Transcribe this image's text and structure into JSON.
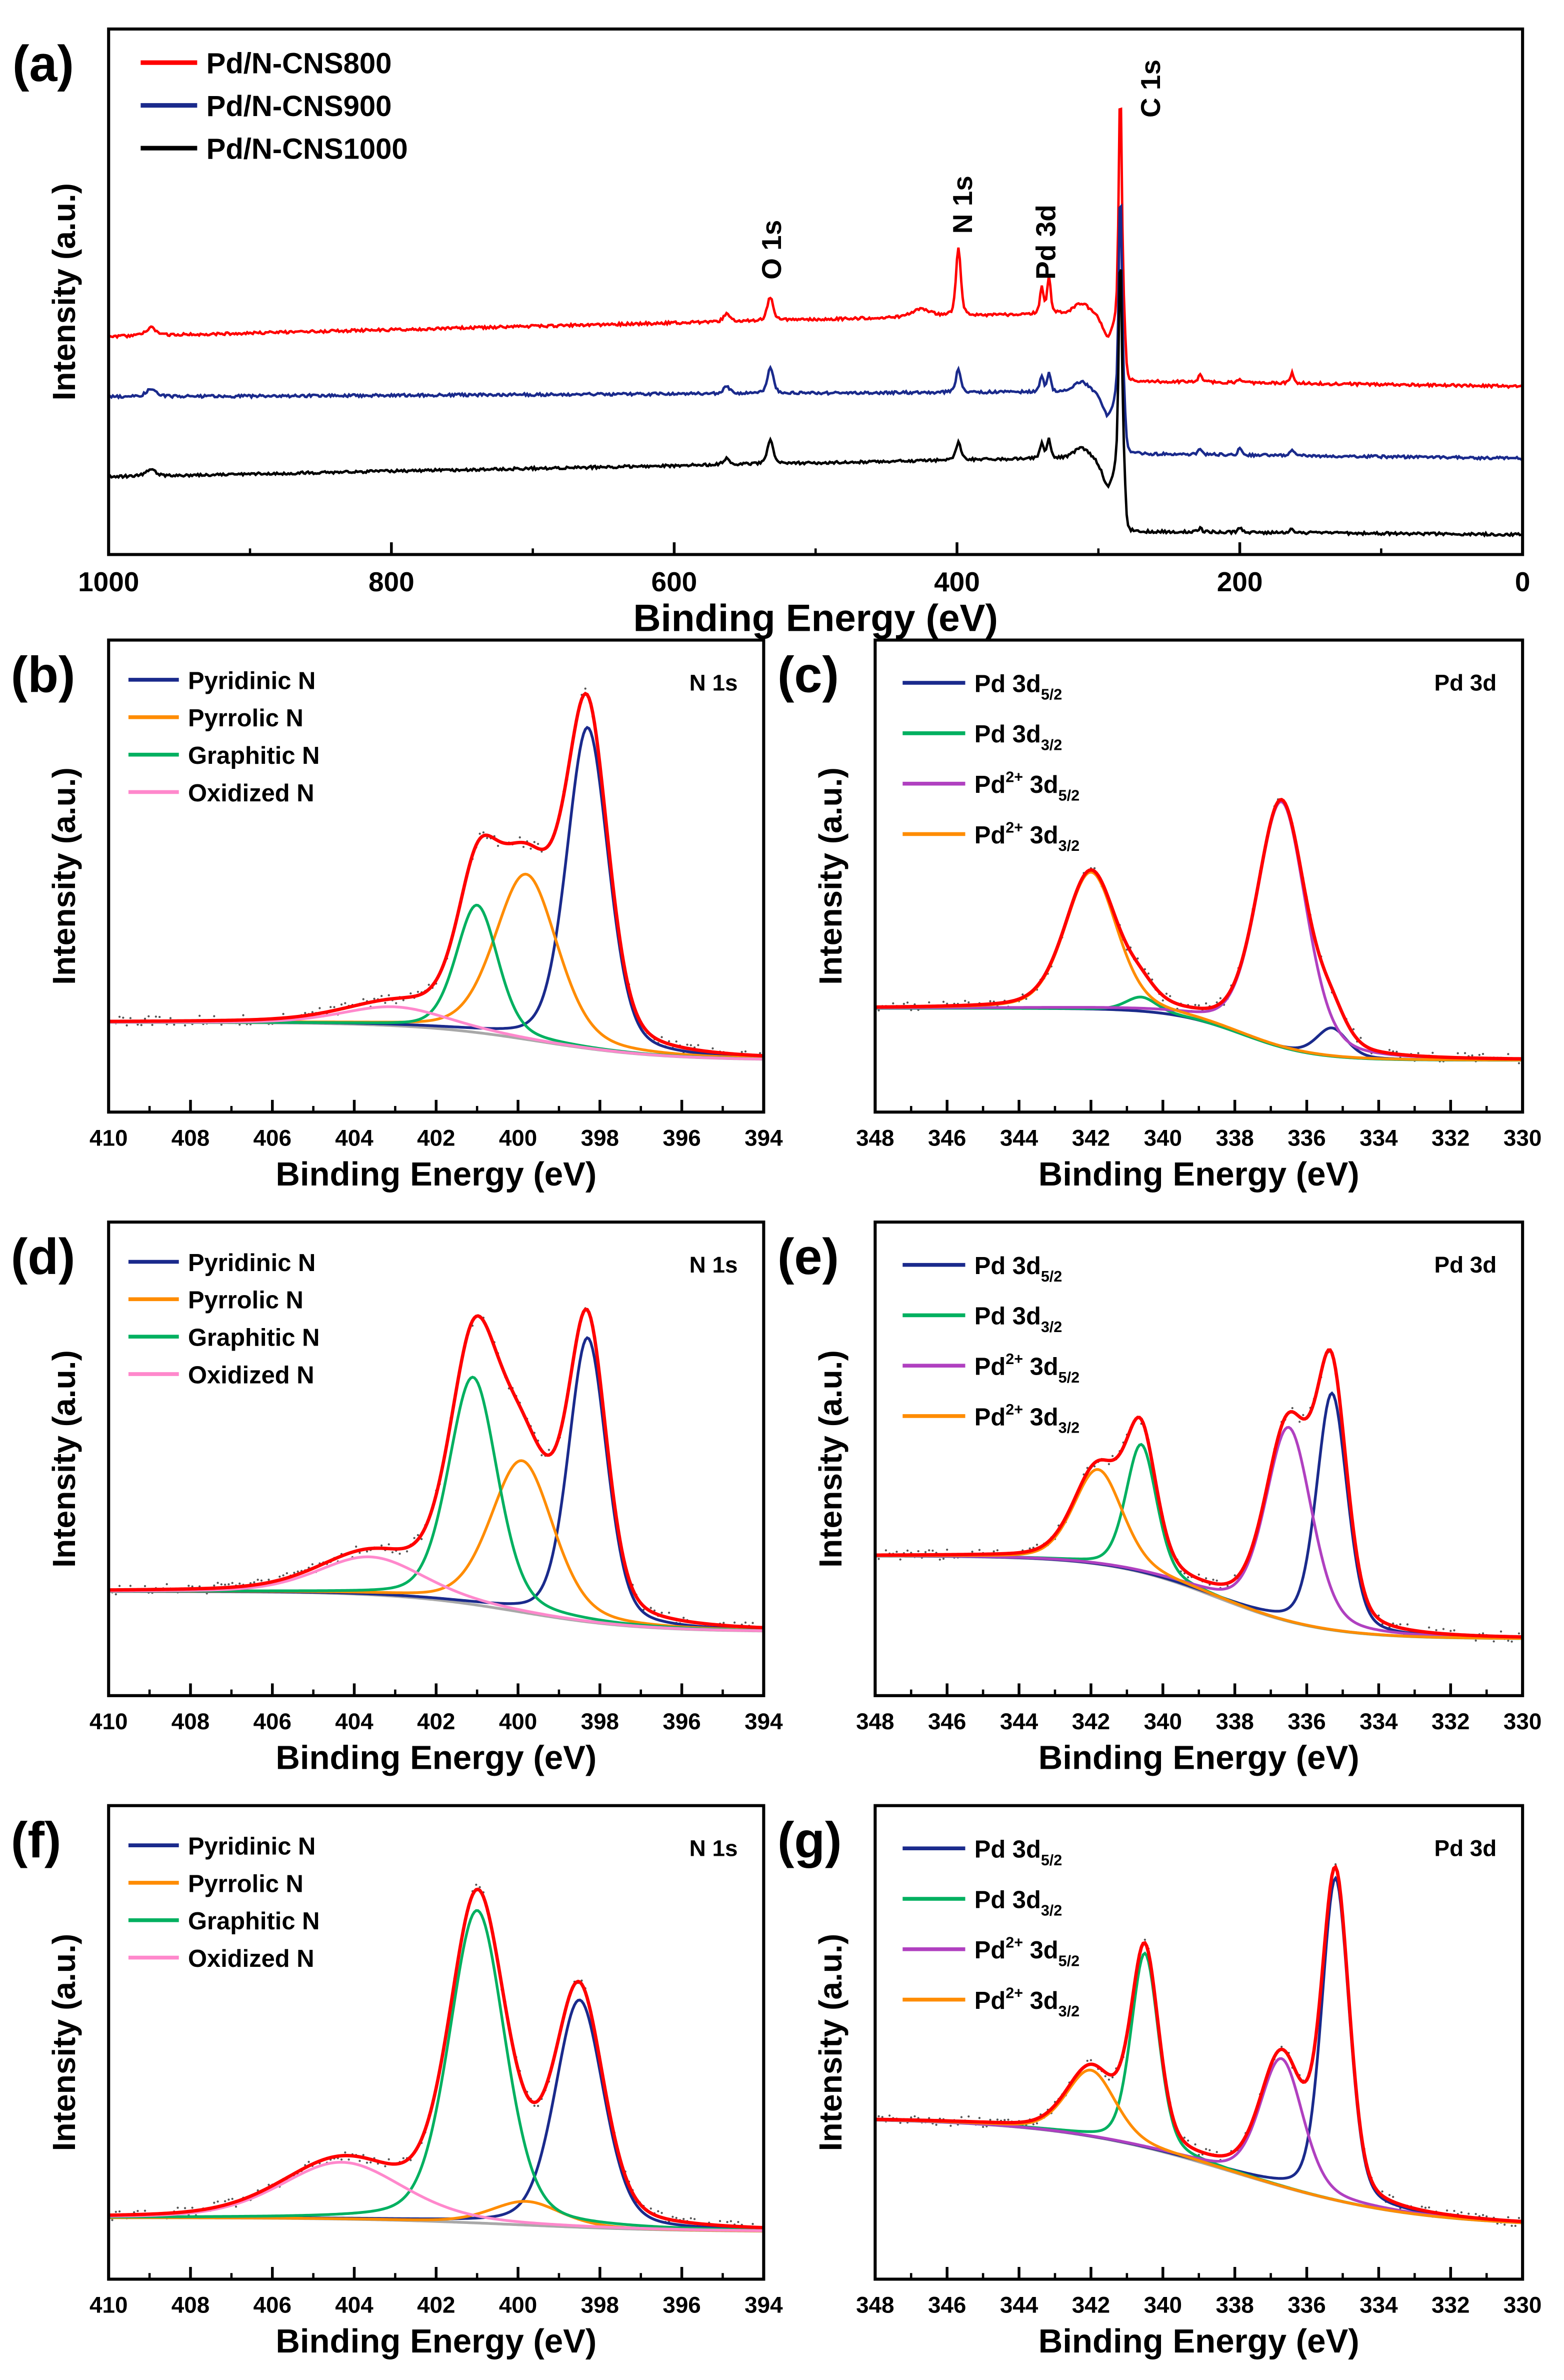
{
  "chart_data": [
    {
      "id": "a",
      "panel_label": "(a)",
      "type": "line",
      "kind": "survey",
      "xlabel": "Binding Energy (eV)",
      "ylabel": "Intensity (a.u.)",
      "xlim": [
        1000,
        0
      ],
      "ylim": [
        0,
        100
      ],
      "xticks": [
        1000,
        800,
        600,
        400,
        200,
        0
      ],
      "minor_step": 100,
      "legend_position": "top-left",
      "series": [
        {
          "name": "Pd/N-CNS800",
          "color": "#ff0000",
          "baseline": [
            41.5,
            46,
            33,
            32
          ],
          "peaks": [
            [
              970,
              1.5,
              8
            ],
            [
              563,
              1.5,
              5
            ],
            [
              532,
              4.5,
              5
            ],
            [
              425,
              1.5,
              15
            ],
            [
              399,
              13,
              4
            ],
            [
              340,
              5,
              3
            ],
            [
              335,
              7,
              3
            ],
            [
              312,
              2,
              12
            ],
            [
              293,
              -5,
              10
            ],
            [
              284.5,
              45,
              2.5
            ],
            [
              228,
              1.5,
              3
            ],
            [
              200,
              0.6,
              3
            ],
            [
              163,
              2,
              3
            ]
          ]
        },
        {
          "name": "Pd/N-CNS900",
          "color": "#1a2a8c",
          "baseline": [
            30,
            31,
            19.2,
            18.3
          ],
          "peaks": [
            [
              970,
              1.5,
              8
            ],
            [
              563,
              1.5,
              5
            ],
            [
              532,
              5,
              5
            ],
            [
              399,
              4.5,
              4
            ],
            [
              340,
              3,
              3
            ],
            [
              335,
              3.5,
              3
            ],
            [
              312,
              2,
              12
            ],
            [
              293,
              -5,
              10
            ],
            [
              284.5,
              41,
              2.5
            ],
            [
              228,
              1,
              3
            ],
            [
              200,
              1.2,
              3
            ],
            [
              163,
              1.2,
              3
            ]
          ]
        },
        {
          "name": "Pd/N-CNS1000",
          "color": "#000000",
          "baseline": [
            14.8,
            18.5,
            4.4,
            3.8
          ],
          "peaks": [
            [
              970,
              1.2,
              8
            ],
            [
              563,
              1.2,
              5
            ],
            [
              532,
              4.5,
              5
            ],
            [
              399,
              3.5,
              4
            ],
            [
              340,
              3,
              3
            ],
            [
              335,
              3.5,
              3
            ],
            [
              312,
              2,
              12
            ],
            [
              293,
              -6,
              10
            ],
            [
              284.5,
              41.5,
              2.5
            ],
            [
              228,
              0.7,
              3
            ],
            [
              200,
              1,
              3
            ],
            [
              163,
              0.7,
              3
            ]
          ]
        }
      ],
      "peak_labels": [
        {
          "text": "O 1s",
          "x": 532
        },
        {
          "text": "N 1s",
          "x": 397
        },
        {
          "text": "Pd 3d",
          "x": 338
        },
        {
          "text": "C 1s",
          "x": 264
        }
      ]
    },
    {
      "id": "b",
      "panel_label": "(b)",
      "type": "line",
      "kind": "fit",
      "annotation": "N 1s",
      "xlabel": "Binding Energy (eV)",
      "ylabel": "Intensity (a.u.)",
      "xlim": [
        410,
        394
      ],
      "ylim": [
        0,
        100
      ],
      "xticks": [
        410,
        408,
        406,
        404,
        402,
        400,
        398,
        396,
        394
      ],
      "minor_step": 1,
      "envelope_color": "#ff0000",
      "raw_color": "#555555",
      "background": {
        "high": 19,
        "low": 11,
        "center": 399.5,
        "width": 1.5,
        "color": "#a8a8a8"
      },
      "components": [
        {
          "label_parts": [
            {
              "text": "Pyridinic N"
            }
          ],
          "color": "#1a2a8c",
          "center": 398.3,
          "amp": 68,
          "fwhm": 1.2
        },
        {
          "label_parts": [
            {
              "text": "Pyrrolic N"
            }
          ],
          "color": "#ff8c00",
          "center": 399.8,
          "amp": 35,
          "fwhm": 1.8
        },
        {
          "label_parts": [
            {
              "text": "Graphitic N"
            }
          ],
          "color": "#00b060",
          "center": 401.0,
          "amp": 27,
          "fwhm": 1.2
        },
        {
          "label_parts": [
            {
              "text": "Oxidized N"
            }
          ],
          "color": "#ff88cc",
          "center": 403.0,
          "amp": 4,
          "fwhm": 3.0
        }
      ]
    },
    {
      "id": "c",
      "panel_label": "(c)",
      "type": "line",
      "kind": "fit",
      "annotation": "Pd 3d",
      "xlabel": "Binding Energy (eV)",
      "ylabel": "Intensity (a.u.)",
      "xlim": [
        348,
        330
      ],
      "ylim": [
        0,
        100
      ],
      "xticks": [
        348,
        346,
        344,
        342,
        340,
        338,
        336,
        334,
        332,
        330
      ],
      "minor_step": 1,
      "envelope_color": "#ff0000",
      "raw_color": "#555555",
      "background": {
        "high": 22,
        "low": 11,
        "center": 337.8,
        "width": 1.0,
        "color": "#a8a8a8"
      },
      "components": [
        {
          "label_parts": [
            {
              "text": "Pd 3d"
            },
            {
              "text": "5/2",
              "style": "sub"
            }
          ],
          "color": "#1a2a8c",
          "center": 335.3,
          "amp": 6,
          "fwhm": 1.0
        },
        {
          "label_parts": [
            {
              "text": "Pd 3d"
            },
            {
              "text": "3/2",
              "style": "sub"
            }
          ],
          "color": "#00b060",
          "center": 340.6,
          "amp": 3,
          "fwhm": 1.0
        },
        {
          "label_parts": [
            {
              "text": "Pd"
            },
            {
              "text": "2+",
              "style": "sup"
            },
            {
              "text": " 3d"
            },
            {
              "text": "5/2",
              "style": "sub"
            }
          ],
          "color": "#b040c0",
          "center": 336.7,
          "amp": 52,
          "fwhm": 1.6
        },
        {
          "label_parts": [
            {
              "text": "Pd"
            },
            {
              "text": "2+",
              "style": "sup"
            },
            {
              "text": " 3d"
            },
            {
              "text": "3/2",
              "style": "sub"
            }
          ],
          "color": "#ff8c00",
          "center": 342.0,
          "amp": 29,
          "fwhm": 1.7
        }
      ]
    },
    {
      "id": "d",
      "panel_label": "(d)",
      "type": "line",
      "kind": "fit",
      "annotation": "N 1s",
      "xlabel": "Binding Energy (eV)",
      "ylabel": "Intensity (a.u.)",
      "xlim": [
        410,
        394
      ],
      "ylim": [
        0,
        100
      ],
      "xticks": [
        410,
        408,
        406,
        404,
        402,
        400,
        398,
        396,
        394
      ],
      "minor_step": 1,
      "envelope_color": "#ff0000",
      "raw_color": "#555555",
      "background": {
        "high": 22,
        "low": 13.5,
        "center": 400,
        "width": 1.5,
        "color": "#a8a8a8"
      },
      "components": [
        {
          "label_parts": [
            {
              "text": "Pyridinic N"
            }
          ],
          "color": "#1a2a8c",
          "center": 398.3,
          "amp": 60,
          "fwhm": 1.1
        },
        {
          "label_parts": [
            {
              "text": "Pyrrolic N"
            }
          ],
          "color": "#ff8c00",
          "center": 399.9,
          "amp": 32,
          "fwhm": 1.8
        },
        {
          "label_parts": [
            {
              "text": "Graphitic N"
            }
          ],
          "color": "#00b060",
          "center": 401.1,
          "amp": 48,
          "fwhm": 1.4
        },
        {
          "label_parts": [
            {
              "text": "Oxidized N"
            }
          ],
          "color": "#ff88cc",
          "center": 403.6,
          "amp": 8,
          "fwhm": 3.0
        }
      ]
    },
    {
      "id": "e",
      "panel_label": "(e)",
      "type": "line",
      "kind": "fit",
      "annotation": "Pd 3d",
      "xlabel": "Binding Energy (eV)",
      "ylabel": "Intensity (a.u.)",
      "xlim": [
        348,
        330
      ],
      "ylim": [
        0,
        100
      ],
      "xticks": [
        348,
        346,
        344,
        342,
        340,
        338,
        336,
        334,
        332,
        330
      ],
      "minor_step": 1,
      "envelope_color": "#ff0000",
      "raw_color": "#555555",
      "background": {
        "high": 29.5,
        "low": 12,
        "center": 338.5,
        "width": 1.5,
        "color": "#a8a8a8"
      },
      "components": [
        {
          "label_parts": [
            {
              "text": "Pd 3d"
            },
            {
              "text": "5/2",
              "style": "sub"
            }
          ],
          "color": "#1a2a8c",
          "center": 335.3,
          "amp": 50,
          "fwhm": 1.0
        },
        {
          "label_parts": [
            {
              "text": "Pd 3d"
            },
            {
              "text": "3/2",
              "style": "sub"
            }
          ],
          "color": "#00b060",
          "center": 340.6,
          "amp": 27,
          "fwhm": 1.0
        },
        {
          "label_parts": [
            {
              "text": "Pd"
            },
            {
              "text": "2+",
              "style": "sup"
            },
            {
              "text": " 3d"
            },
            {
              "text": "5/2",
              "style": "sub"
            }
          ],
          "color": "#b040c0",
          "center": 336.5,
          "amp": 41,
          "fwhm": 1.5
        },
        {
          "label_parts": [
            {
              "text": "Pd"
            },
            {
              "text": "2+",
              "style": "sup"
            },
            {
              "text": " 3d"
            },
            {
              "text": "3/2",
              "style": "sub"
            }
          ],
          "color": "#ff8c00",
          "center": 341.8,
          "amp": 20,
          "fwhm": 1.6
        }
      ]
    },
    {
      "id": "f",
      "panel_label": "(f)",
      "type": "line",
      "kind": "fit",
      "annotation": "N 1s",
      "xlabel": "Binding Energy (eV)",
      "ylabel": "Intensity (a.u.)",
      "xlim": [
        410,
        394
      ],
      "ylim": [
        0,
        100
      ],
      "xticks": [
        410,
        408,
        406,
        404,
        402,
        400,
        398,
        396,
        394
      ],
      "minor_step": 1,
      "envelope_color": "#ff0000",
      "raw_color": "#555555",
      "background": {
        "high": 13,
        "low": 10,
        "center": 400,
        "width": 2.0,
        "color": "#a8a8a8"
      },
      "components": [
        {
          "label_parts": [
            {
              "text": "Pyridinic N"
            }
          ],
          "color": "#1a2a8c",
          "center": 398.5,
          "amp": 48,
          "fwhm": 1.4
        },
        {
          "label_parts": [
            {
              "text": "Pyrrolic N"
            }
          ],
          "color": "#ff8c00",
          "center": 399.8,
          "amp": 5,
          "fwhm": 2.0
        },
        {
          "label_parts": [
            {
              "text": "Graphitic N"
            }
          ],
          "color": "#00b060",
          "center": 401.0,
          "amp": 66,
          "fwhm": 1.6
        },
        {
          "label_parts": [
            {
              "text": "Oxidized N"
            }
          ],
          "color": "#ff88cc",
          "center": 404.3,
          "amp": 12,
          "fwhm": 3.5
        }
      ]
    },
    {
      "id": "g",
      "panel_label": "(g)",
      "type": "line",
      "kind": "fit",
      "annotation": "Pd 3d",
      "xlabel": "Binding Energy (eV)",
      "ylabel": "Intensity (a.u.)",
      "xlim": [
        348,
        330
      ],
      "ylim": [
        0,
        100
      ],
      "xticks": [
        348,
        346,
        344,
        342,
        340,
        338,
        336,
        334,
        332,
        330
      ],
      "minor_step": 1,
      "envelope_color": "#ff0000",
      "raw_color": "#555555",
      "background": {
        "high": 34,
        "low": 11,
        "center": 338,
        "width": 2.5,
        "color": "#a8a8a8"
      },
      "components": [
        {
          "label_parts": [
            {
              "text": "Pd 3d"
            },
            {
              "text": "5/2",
              "style": "sub"
            }
          ],
          "color": "#1a2a8c",
          "center": 335.2,
          "amp": 68,
          "fwhm": 0.9
        },
        {
          "label_parts": [
            {
              "text": "Pd 3d"
            },
            {
              "text": "3/2",
              "style": "sub"
            }
          ],
          "color": "#00b060",
          "center": 340.5,
          "amp": 41,
          "fwhm": 0.9
        },
        {
          "label_parts": [
            {
              "text": "Pd"
            },
            {
              "text": "2+",
              "style": "sup"
            },
            {
              "text": " 3d"
            },
            {
              "text": "5/2",
              "style": "sub"
            }
          ],
          "color": "#b040c0",
          "center": 336.7,
          "amp": 27,
          "fwhm": 1.4
        },
        {
          "label_parts": [
            {
              "text": "Pd"
            },
            {
              "text": "2+",
              "style": "sup"
            },
            {
              "text": " 3d"
            },
            {
              "text": "3/2",
              "style": "sub"
            }
          ],
          "color": "#ff8c00",
          "center": 342.0,
          "amp": 14,
          "fwhm": 1.6
        }
      ]
    }
  ]
}
